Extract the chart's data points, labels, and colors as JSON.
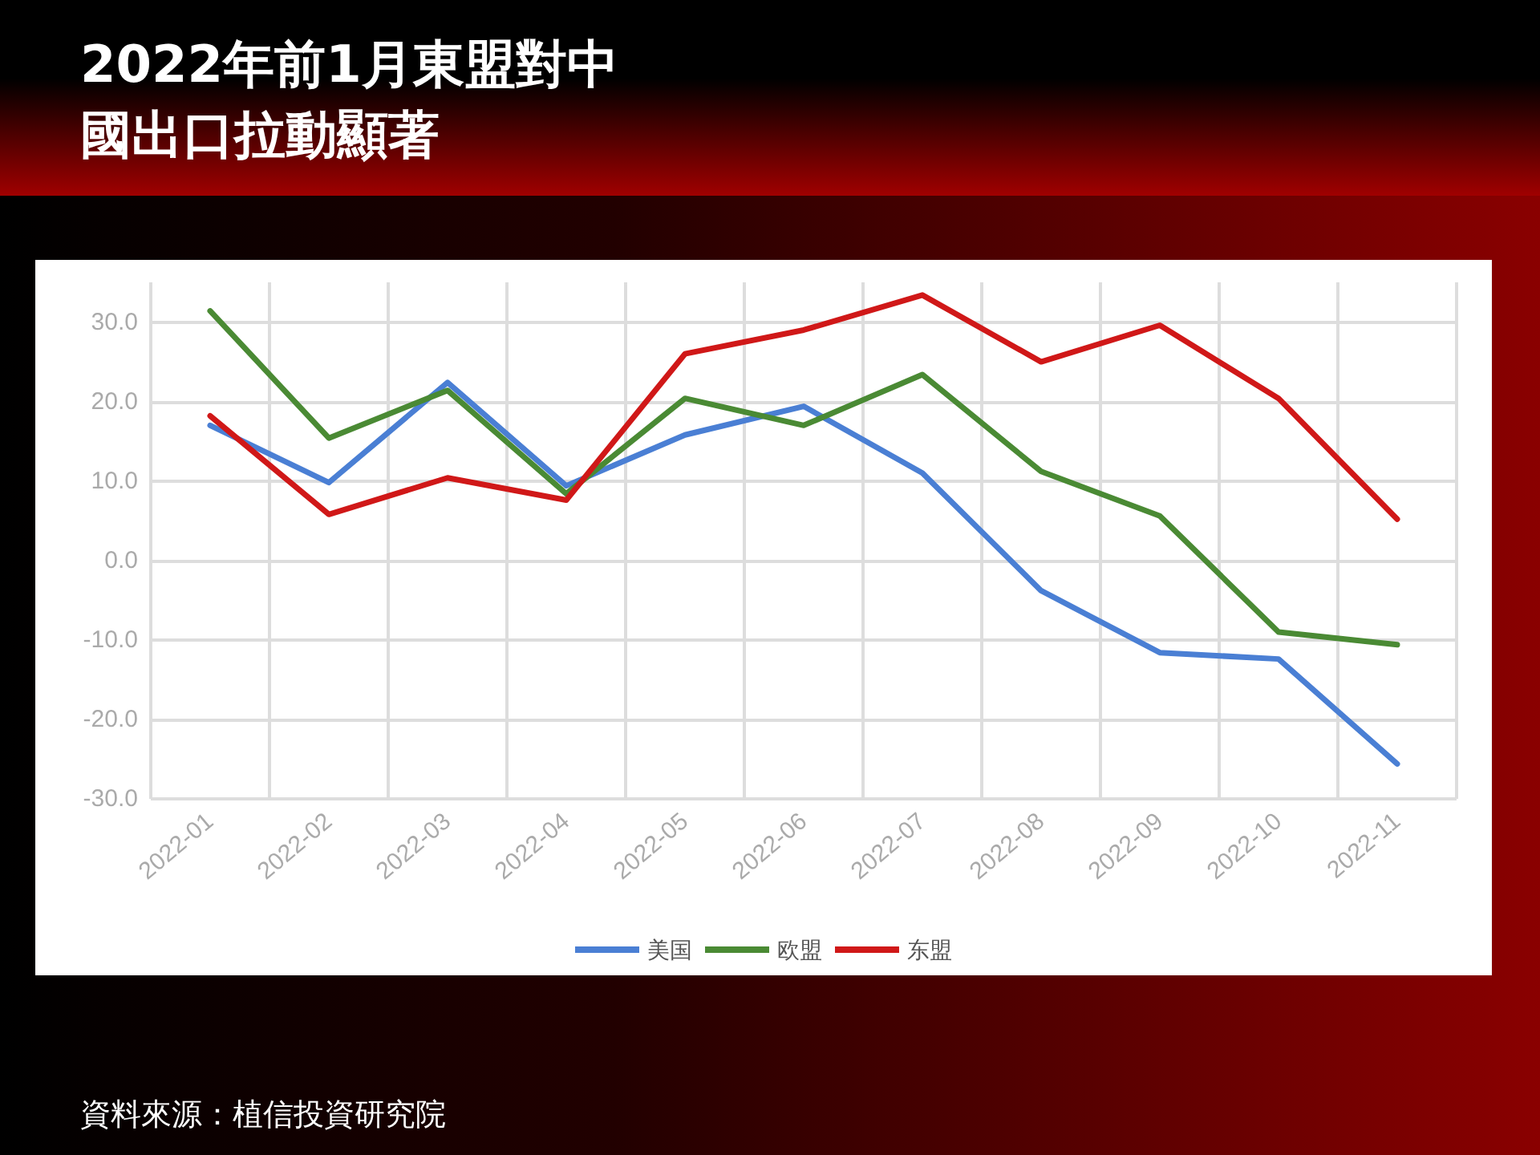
{
  "chart_data": {
    "type": "line",
    "title": "2022年前1月東盟對中國出口拉動顯著",
    "annotations": [
      "資料來源：植信投資研究院"
    ],
    "categories": [
      "2022-01",
      "2022-02",
      "2022-03",
      "2022-04",
      "2022-05",
      "2022-06",
      "2022-07",
      "2022-08",
      "2022-09",
      "2022-10",
      "2022-11"
    ],
    "series": [
      {
        "name": "美国",
        "color": "#4a7fd4",
        "values": [
          17,
          9.8,
          22.4,
          9.4,
          15.8,
          19.4,
          11,
          -3.8,
          -11.6,
          -12.4,
          -25.6
        ]
      },
      {
        "name": "欧盟",
        "color": "#4a8a34",
        "values": [
          31.4,
          15.4,
          21.4,
          8.4,
          20.4,
          17,
          23.4,
          11.2,
          5.6,
          -9,
          -10.6
        ]
      },
      {
        "name": "东盟",
        "color": "#d01818",
        "values": [
          18.2,
          5.8,
          10.4,
          7.6,
          26,
          29,
          33.4,
          25,
          29.6,
          20.4,
          5.2
        ]
      }
    ],
    "ylim": [
      -30,
      35
    ],
    "yticks": [
      {
        "value": -30,
        "label": "-30.0"
      },
      {
        "value": -20,
        "label": "-20.0"
      },
      {
        "value": -10,
        "label": "-10.0"
      },
      {
        "value": 0,
        "label": "0.0"
      },
      {
        "value": 10,
        "label": "10.0"
      },
      {
        "value": 20,
        "label": "20.0"
      },
      {
        "value": 30,
        "label": "30.0"
      }
    ],
    "grid": true,
    "legend": "bottom",
    "marker": "none",
    "line_style": "solid"
  }
}
